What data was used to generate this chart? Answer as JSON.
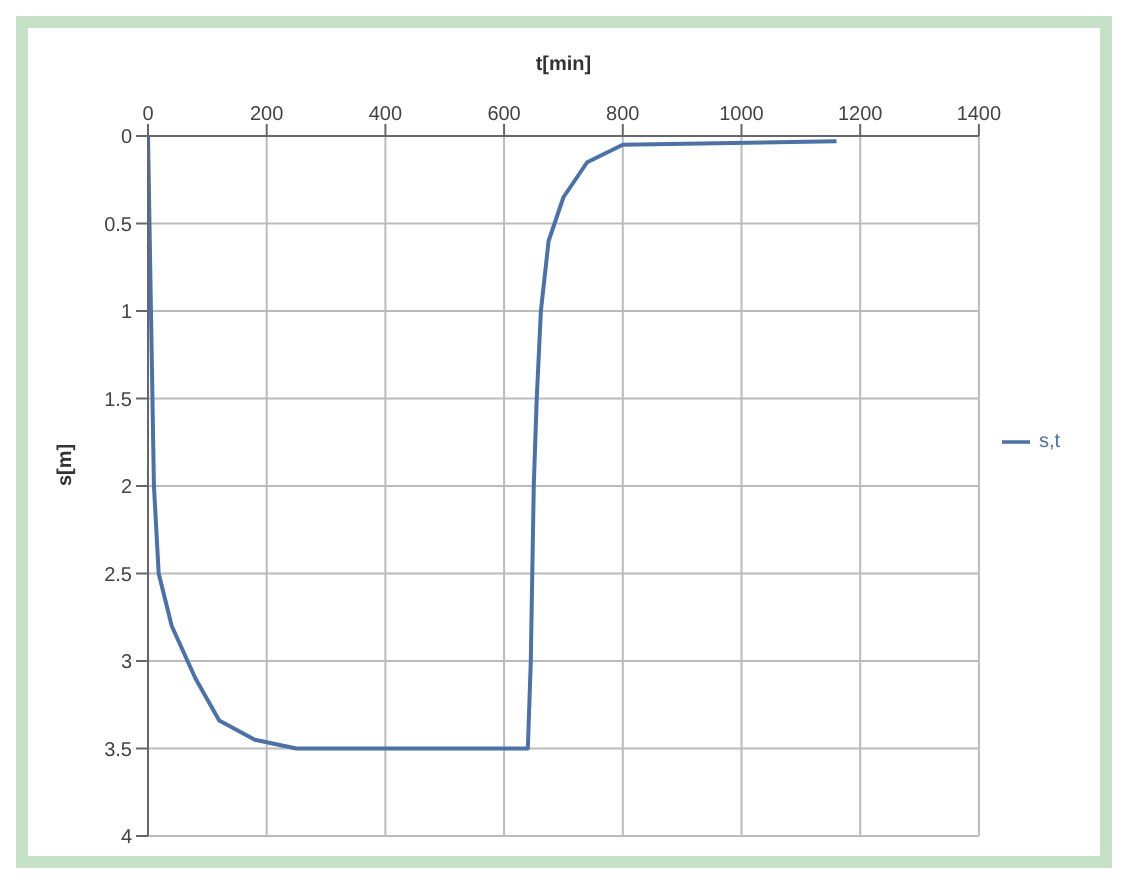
{
  "chart_data": {
    "type": "line",
    "xlabel": "t[min]",
    "ylabel": "s[m]",
    "x": [
      0,
      5,
      10,
      18,
      40,
      80,
      120,
      180,
      250,
      640,
      645,
      650,
      655,
      662,
      675,
      700,
      740,
      800,
      1160
    ],
    "series": [
      {
        "name": "s,t",
        "color": "#4a72a8",
        "values": [
          0,
          1,
          2,
          2.5,
          2.8,
          3.1,
          3.34,
          3.45,
          3.5,
          3.5,
          3,
          2,
          1.5,
          1,
          0.6,
          0.35,
          0.15,
          0.05,
          0.03
        ]
      }
    ],
    "xlim": [
      0,
      1400
    ],
    "xticks": [
      0,
      200,
      400,
      600,
      800,
      1000,
      1200,
      1400
    ],
    "ylim": [
      4,
      0
    ],
    "yticks": [
      0,
      0.5,
      1,
      1.5,
      2,
      2.5,
      3,
      3.5,
      4
    ],
    "grid": true,
    "legend": "right",
    "marker": "none",
    "line_style": "solid"
  }
}
